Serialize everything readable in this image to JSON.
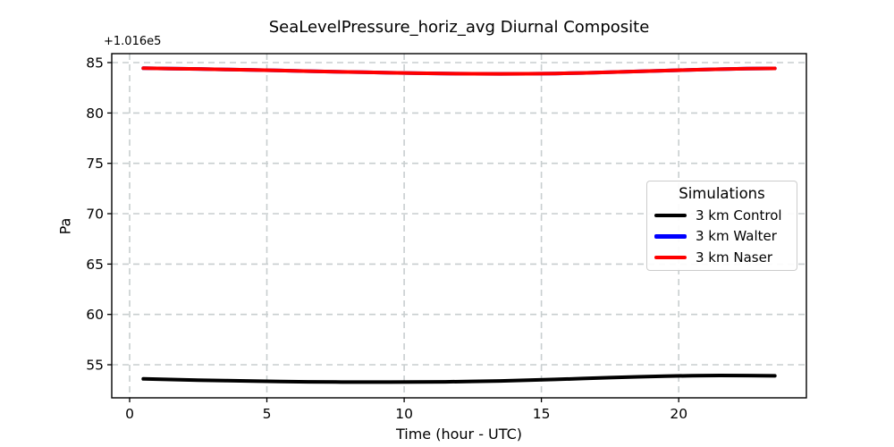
{
  "figure": {
    "background": "#ffffff"
  },
  "chart_data": {
    "type": "line",
    "title": "SeaLevelPressure_horiz_avg Diurnal Composite",
    "xlabel": "Time (hour - UTC)",
    "ylabel": "Pa",
    "y_offset_text": "+1.016e5",
    "grid": true,
    "grid_color": "#c8cecf",
    "legend": {
      "title": "Simulations",
      "position": "center right"
    },
    "xticks": [
      0,
      5,
      10,
      15,
      20
    ],
    "yticks": [
      55,
      60,
      65,
      70,
      75,
      80,
      85
    ],
    "xlim": [
      -0.65,
      24.65
    ],
    "ylim": [
      51.72,
      85.89
    ],
    "x": [
      0.5,
      1.5,
      2.5,
      3.5,
      4.5,
      5.5,
      6.5,
      7.5,
      8.5,
      9.5,
      10.5,
      11.5,
      12.5,
      13.5,
      14.5,
      15.5,
      16.5,
      17.5,
      18.5,
      19.5,
      20.5,
      21.5,
      22.5,
      23.5
    ],
    "series": [
      {
        "name": "3 km Control",
        "color": "#000000",
        "values": [
          53.6,
          53.54,
          53.48,
          53.43,
          53.38,
          53.34,
          53.31,
          53.29,
          53.28,
          53.28,
          53.29,
          53.31,
          53.35,
          53.4,
          53.47,
          53.55,
          53.64,
          53.73,
          53.81,
          53.87,
          53.92,
          53.94,
          53.93,
          53.9
        ]
      },
      {
        "name": "3 km Walter",
        "color": "#0000ff",
        "values": [
          84.44,
          84.41,
          84.37,
          84.32,
          84.27,
          84.21,
          84.15,
          84.09,
          84.04,
          83.99,
          83.95,
          83.91,
          83.89,
          83.88,
          83.89,
          83.92,
          83.97,
          84.04,
          84.12,
          84.2,
          84.28,
          84.35,
          84.4,
          84.43
        ]
      },
      {
        "name": "3 km Naser",
        "color": "#ff0000",
        "values": [
          84.44,
          84.41,
          84.37,
          84.32,
          84.27,
          84.21,
          84.15,
          84.09,
          84.04,
          83.99,
          83.95,
          83.91,
          83.89,
          83.88,
          83.89,
          83.92,
          83.97,
          84.04,
          84.12,
          84.2,
          84.28,
          84.35,
          84.4,
          84.43
        ]
      }
    ]
  }
}
